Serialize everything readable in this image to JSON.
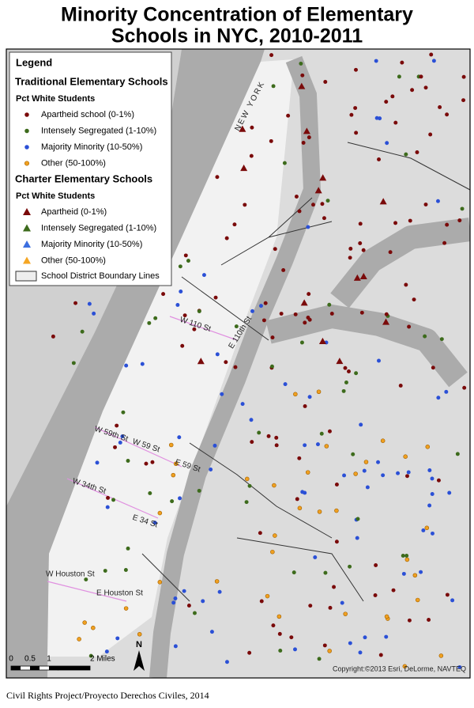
{
  "title": [
    "Minority Concentration of Elementary",
    "Schools in NYC, 2010-2011"
  ],
  "legend": {
    "heading": "Legend",
    "groups": [
      {
        "title": "Traditional Elementary Schools",
        "subtitle": "Pct White Students",
        "marker": "circle",
        "items": [
          {
            "label": "Apartheid school (0-1%)",
            "color": "#7a0a0a"
          },
          {
            "label": "Intensely Segregated (1-10%)",
            "color": "#3d6b1c"
          },
          {
            "label": "Majority Minority (10-50%)",
            "color": "#2b50d6"
          },
          {
            "label": "Other (50-100%)",
            "color": "#f0a020"
          }
        ]
      },
      {
        "title": "Charter Elementary Schools",
        "subtitle": "Pct White Students",
        "marker": "triangle",
        "items": [
          {
            "label": "Apartheid (0-1%)",
            "color": "#7a0a0a"
          },
          {
            "label": "Intensely Segregated (1-10%)",
            "color": "#3d6b1c"
          },
          {
            "label": "Majority Minority (10-50%)",
            "color": "#3c6fe0"
          },
          {
            "label": "Other (50-100%)",
            "color": "#f5a623"
          }
        ]
      }
    ],
    "boundary": "School District Boundary Lines"
  },
  "state_label": "NEW YORK",
  "street_labels": [
    "W 110 St",
    "E 110th St",
    "W 59th St",
    "W 59 St",
    "E 59 St",
    "W 34th St",
    "E 34 St",
    "W Houston St",
    "E Houston St"
  ],
  "scale_bar": [
    "0",
    "0.5",
    "1",
    "2 Miles"
  ],
  "north": "N",
  "copyright": "Copyright:©2013 Esri, DeLorme, NAVTEQ",
  "footer": "Civil Rights Project/Proyecto Derechos Civiles, 2014"
}
